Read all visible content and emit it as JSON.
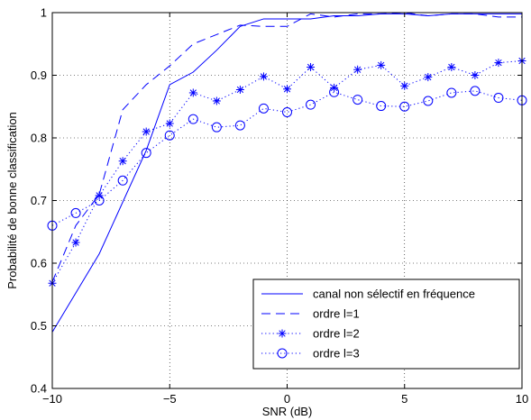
{
  "chart_data": {
    "type": "line",
    "xlabel": "SNR (dB)",
    "ylabel": "Probabilité de bonne classification",
    "xlim": [
      -10,
      10
    ],
    "ylim": [
      0.4,
      1
    ],
    "xticks": [
      -10,
      -5,
      0,
      5,
      10
    ],
    "xtick_labels": [
      "−10",
      "−5",
      "0",
      "5",
      "10"
    ],
    "yticks": [
      0.4,
      0.5,
      0.6,
      0.7,
      0.8,
      0.9,
      1
    ],
    "ytick_labels": [
      "0.4",
      "0.5",
      "0.6",
      "0.7",
      "0.8",
      "0.9",
      "1"
    ],
    "grid": true,
    "legend_position": "lower-right",
    "color": "#0000ff",
    "series": [
      {
        "name": "canal non sélectif en fréquence",
        "style": "solid",
        "marker": "none",
        "x": [
          -10,
          -8,
          -6,
          -5,
          -4,
          -3,
          -2,
          -1,
          0,
          1,
          2,
          3,
          4,
          5,
          6,
          7,
          8,
          9,
          10
        ],
        "y": [
          0.49,
          0.615,
          0.78,
          0.885,
          0.905,
          0.94,
          0.978,
          0.99,
          0.99,
          0.99,
          0.995,
          0.995,
          0.998,
          0.998,
          0.995,
          0.998,
          0.998,
          0.998,
          0.998
        ]
      },
      {
        "name": "ordre l=1",
        "style": "dashed",
        "marker": "none",
        "x": [
          -10,
          -9,
          -8,
          -7,
          -6,
          -5,
          -4,
          -3,
          -2,
          -1,
          0,
          1,
          2,
          3,
          4,
          5,
          6,
          7,
          8,
          9,
          10
        ],
        "y": [
          0.57,
          0.66,
          0.71,
          0.845,
          0.885,
          0.915,
          0.95,
          0.965,
          0.98,
          0.978,
          0.978,
          0.998,
          0.993,
          0.998,
          0.998,
          1.0,
          0.995,
          0.998,
          0.998,
          0.993,
          0.993
        ]
      },
      {
        "name": "ordre l=2",
        "style": "dotted",
        "marker": "star",
        "x": [
          -10,
          -9,
          -8,
          -7,
          -6,
          -5,
          -4,
          -3,
          -2,
          -1,
          0,
          1,
          2,
          3,
          4,
          5,
          6,
          7,
          8,
          9,
          10
        ],
        "y": [
          0.568,
          0.633,
          0.708,
          0.763,
          0.81,
          0.823,
          0.872,
          0.859,
          0.877,
          0.898,
          0.878,
          0.913,
          0.88,
          0.909,
          0.916,
          0.883,
          0.897,
          0.913,
          0.9,
          0.92,
          0.923
        ]
      },
      {
        "name": "ordre l=3",
        "style": "dotted",
        "marker": "circle",
        "x": [
          -10,
          -9,
          -8,
          -7,
          -6,
          -5,
          -4,
          -3,
          -2,
          -1,
          0,
          1,
          2,
          3,
          4,
          5,
          6,
          7,
          8,
          9,
          10
        ],
        "y": [
          0.66,
          0.68,
          0.7,
          0.732,
          0.776,
          0.804,
          0.83,
          0.817,
          0.82,
          0.847,
          0.841,
          0.853,
          0.873,
          0.861,
          0.851,
          0.85,
          0.859,
          0.872,
          0.875,
          0.864,
          0.86
        ]
      }
    ]
  }
}
